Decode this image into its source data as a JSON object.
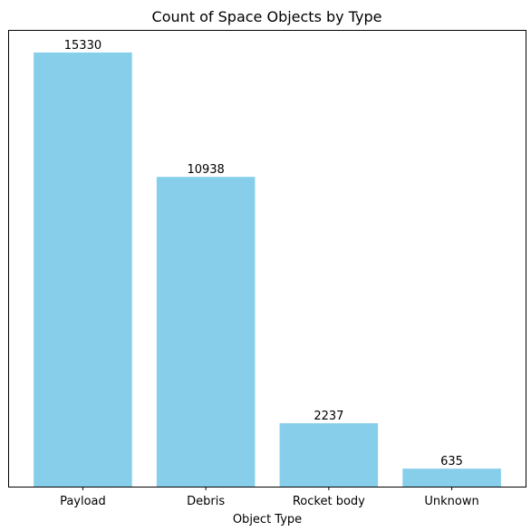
{
  "chart_data": {
    "type": "bar",
    "title": "Count of Space Objects by Type",
    "xlabel": "Object Type",
    "ylabel": "",
    "categories": [
      "Payload",
      "Debris",
      "Rocket body",
      "Unknown"
    ],
    "values": [
      15330,
      10938,
      2237,
      635
    ],
    "data_labels": [
      "15330",
      "10938",
      "2237",
      "635"
    ],
    "ylim": [
      0,
      16096.5
    ],
    "y_axis_visible": false,
    "grid": false,
    "legend": "none",
    "colors": {
      "bar": "#87ceeb",
      "axis": "#000000",
      "text": "#000000"
    }
  }
}
